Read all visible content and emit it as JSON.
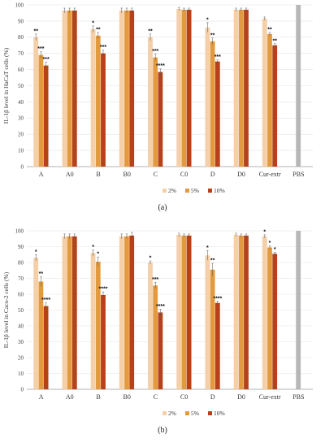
{
  "colors": {
    "2%": "#f4cfa8",
    "5%": "#e39a3f",
    "10%": "#b5421a",
    "PBS": "#b7b7b7"
  },
  "chart_data": [
    {
      "type": "bar",
      "panel_label": "(a)",
      "ylabel": "IL-1β level in HaCaT cells (%)",
      "ylim": [
        0,
        100
      ],
      "yticks": [
        "0",
        "10",
        "20",
        "30",
        "40",
        "50",
        "60",
        "70",
        "80",
        "90",
        "100"
      ],
      "categories": [
        "A",
        "A0",
        "B",
        "B0",
        "C",
        "C0",
        "D",
        "D0",
        "Cur-extr",
        "PBS"
      ],
      "legend": [
        "2%",
        "5%",
        "10%"
      ],
      "series": [
        {
          "name": "2%",
          "values": [
            80,
            96.5,
            85,
            96.5,
            80,
            97.5,
            86,
            97,
            91.5,
            null
          ],
          "errors": [
            2,
            1.5,
            2,
            1.5,
            2,
            1,
            3,
            1,
            1,
            null
          ],
          "stars": [
            "**",
            "",
            "*",
            "",
            "**",
            "",
            "*",
            "",
            "",
            ""
          ]
        },
        {
          "name": "5%",
          "values": [
            69,
            96.5,
            81,
            96.5,
            67.5,
            97,
            77.5,
            97,
            82,
            null
          ],
          "errors": [
            2,
            1.5,
            2,
            1.5,
            2,
            1,
            2,
            1,
            1,
            null
          ],
          "stars": [
            "***",
            "",
            "**",
            "",
            "***",
            "",
            "**",
            "",
            "**",
            ""
          ]
        },
        {
          "name": "10%",
          "values": [
            62.5,
            96.5,
            70,
            96.5,
            58.5,
            97,
            65,
            97,
            75,
            null
          ],
          "errors": [
            2,
            1.5,
            2,
            1.5,
            2,
            1,
            1,
            1,
            1,
            null
          ],
          "stars": [
            "***",
            "",
            "***",
            "",
            "****",
            "",
            "***",
            "",
            "**",
            ""
          ]
        },
        {
          "name": "PBS",
          "values": [
            null,
            null,
            null,
            null,
            null,
            null,
            null,
            null,
            null,
            100
          ],
          "errors": [
            null,
            null,
            null,
            null,
            null,
            null,
            null,
            null,
            null,
            0
          ],
          "stars": [
            "",
            "",
            "",
            "",
            "",
            "",
            "",
            "",
            "",
            ""
          ]
        }
      ]
    },
    {
      "type": "bar",
      "panel_label": "(b)",
      "ylabel": "IL-1β level in Caco-2 cells (%)",
      "ylim": [
        0,
        100
      ],
      "yticks": [
        "0",
        "10",
        "20",
        "30",
        "40",
        "50",
        "60",
        "70",
        "80",
        "90",
        "100"
      ],
      "categories": [
        "A",
        "A0",
        "B",
        "B0",
        "C",
        "C0",
        "D",
        "D0",
        "Cur-extr",
        "PBS"
      ],
      "legend": [
        "2%",
        "5%",
        "10%"
      ],
      "series": [
        {
          "name": "2%",
          "values": [
            83,
            96.5,
            86,
            96.5,
            80,
            97.5,
            84.5,
            97.5,
            96.5,
            null
          ],
          "errors": [
            2,
            1.5,
            2,
            1.5,
            1,
            1,
            3,
            1,
            1,
            null
          ],
          "stars": [
            "*",
            "",
            "*",
            "",
            "*",
            "",
            "*",
            "",
            "*",
            ""
          ]
        },
        {
          "name": "5%",
          "values": [
            68,
            96.5,
            80.5,
            96.5,
            65.5,
            97,
            75.5,
            97,
            89.5,
            null
          ],
          "errors": [
            3,
            1.5,
            3,
            1.5,
            2,
            1,
            4,
            1,
            1,
            null
          ],
          "stars": [
            "**",
            "",
            "*",
            "",
            "***",
            "",
            "**",
            "",
            "*",
            ""
          ]
        },
        {
          "name": "10%",
          "values": [
            52.5,
            96.5,
            59.5,
            97,
            48.5,
            97,
            54.5,
            97,
            85.5,
            null
          ],
          "errors": [
            2,
            1.5,
            2,
            2,
            2,
            1,
            1,
            1,
            1,
            null
          ],
          "stars": [
            "****",
            "",
            "****",
            "",
            "****",
            "",
            "****",
            "",
            "*",
            ""
          ]
        },
        {
          "name": "PBS",
          "values": [
            null,
            null,
            null,
            null,
            null,
            null,
            null,
            null,
            null,
            100
          ],
          "errors": [
            null,
            null,
            null,
            null,
            null,
            null,
            null,
            null,
            null,
            0
          ],
          "stars": [
            "",
            "",
            "",
            "",
            "",
            "",
            "",
            "",
            "",
            ""
          ]
        }
      ]
    }
  ]
}
